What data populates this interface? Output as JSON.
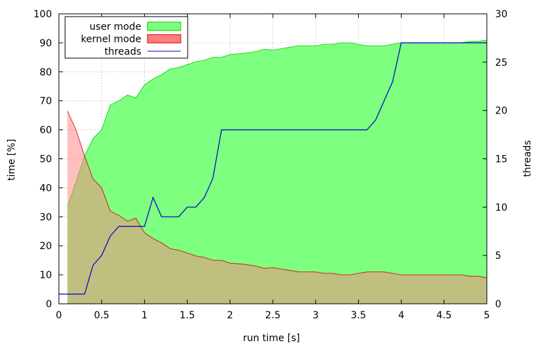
{
  "chart_data": {
    "type": "area",
    "xlabel": "run time [s]",
    "ylabel": "time [%]",
    "y2label": "threads",
    "xlim": [
      0,
      5
    ],
    "ylim": [
      0,
      100
    ],
    "y2lim": [
      0,
      30
    ],
    "xticks": [
      0,
      0.5,
      1,
      1.5,
      2,
      2.5,
      3,
      3.5,
      4,
      4.5,
      5
    ],
    "xtick_labels": [
      "0",
      "0.5",
      "1",
      "1.5",
      "2",
      "2.5",
      "3",
      "3.5",
      "4",
      "4.5",
      "5"
    ],
    "yticks": [
      0,
      10,
      20,
      30,
      40,
      50,
      60,
      70,
      80,
      90,
      100
    ],
    "ytick_labels": [
      "0",
      "10",
      "20",
      "30",
      "40",
      "50",
      "60",
      "70",
      "80",
      "90",
      "100"
    ],
    "y2ticks": [
      0,
      5,
      10,
      15,
      20,
      25,
      30
    ],
    "y2tick_labels": [
      "0",
      "5",
      "10",
      "15",
      "20",
      "25",
      "30"
    ],
    "grid": true,
    "legend_position": "top-left",
    "series": [
      {
        "name": "user mode",
        "kind": "area",
        "axis": "left",
        "color": "#7fff7f",
        "stroke": "#00cc00",
        "x": [
          0.1,
          0.2,
          0.3,
          0.4,
          0.5,
          0.6,
          0.7,
          0.8,
          0.9,
          1.0,
          1.1,
          1.2,
          1.3,
          1.4,
          1.5,
          1.6,
          1.7,
          1.8,
          1.9,
          2.0,
          2.1,
          2.2,
          2.3,
          2.4,
          2.5,
          2.6,
          2.7,
          2.8,
          2.9,
          3.0,
          3.1,
          3.2,
          3.3,
          3.4,
          3.5,
          3.6,
          3.7,
          3.8,
          3.9,
          4.0,
          4.1,
          4.2,
          4.3,
          4.4,
          4.5,
          4.6,
          4.7,
          4.8,
          4.9,
          5.0
        ],
        "values": [
          33.5,
          42,
          51,
          57,
          60,
          68.5,
          70,
          72,
          71,
          75.5,
          77.5,
          79,
          81,
          81.5,
          82.5,
          83.5,
          84,
          85,
          85,
          86,
          86.2,
          86.5,
          87,
          87.8,
          87.5,
          88,
          88.5,
          89,
          89,
          89,
          89.5,
          89.5,
          90,
          90,
          89.5,
          89,
          89,
          89,
          89.5,
          90,
          90,
          90,
          90,
          90,
          90,
          90,
          90,
          90.5,
          90.5,
          91
        ]
      },
      {
        "name": "kernel mode",
        "kind": "area",
        "axis": "left",
        "color": "#ff7f7f",
        "stroke": "#cc0000",
        "x": [
          0.1,
          0.2,
          0.3,
          0.4,
          0.5,
          0.6,
          0.7,
          0.8,
          0.9,
          1.0,
          1.1,
          1.2,
          1.3,
          1.4,
          1.5,
          1.6,
          1.7,
          1.8,
          1.9,
          2.0,
          2.1,
          2.2,
          2.3,
          2.4,
          2.5,
          2.6,
          2.7,
          2.8,
          2.9,
          3.0,
          3.1,
          3.2,
          3.3,
          3.4,
          3.5,
          3.6,
          3.7,
          3.8,
          3.9,
          4.0,
          4.1,
          4.2,
          4.3,
          4.4,
          4.5,
          4.6,
          4.7,
          4.8,
          4.9,
          5.0
        ],
        "values": [
          66.5,
          60,
          51,
          43,
          40,
          32,
          30.5,
          28.5,
          29.5,
          24.5,
          22.5,
          21,
          19,
          18.5,
          17.5,
          16.5,
          16,
          15,
          15,
          14,
          13.8,
          13.5,
          13,
          12.2,
          12.5,
          12,
          11.5,
          11,
          11,
          11,
          10.5,
          10.5,
          10,
          10,
          10.5,
          11,
          11,
          11,
          10.5,
          10,
          10,
          10,
          10,
          10,
          10,
          10,
          10,
          9.5,
          9.5,
          9
        ]
      },
      {
        "name": "threads",
        "kind": "line",
        "axis": "right",
        "color": "#0000cc",
        "x": [
          0,
          0.3,
          0.4,
          0.5,
          0.6,
          0.7,
          0.8,
          0.9,
          1.0,
          1.1,
          1.2,
          1.3,
          1.4,
          1.5,
          1.6,
          1.7,
          1.8,
          1.9,
          2.0,
          2.5,
          3.0,
          3.5,
          3.6,
          3.7,
          3.8,
          3.9,
          4.0,
          4.5,
          5.0
        ],
        "values": [
          1,
          1,
          4,
          5,
          7,
          8,
          8,
          8,
          8,
          11,
          9,
          9,
          9,
          10,
          10,
          11,
          13,
          18,
          18,
          18,
          18,
          18,
          18,
          19,
          21,
          23,
          27,
          27,
          27
        ]
      }
    ]
  }
}
